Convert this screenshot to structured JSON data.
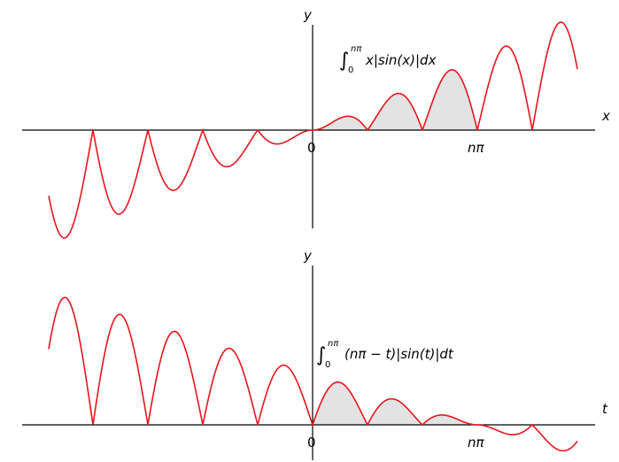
{
  "chart_data": [
    {
      "type": "line",
      "function": "y = x|sin(x)|",
      "x_labels": [
        "0",
        "nπ"
      ],
      "axis_labels": {
        "horizontal": "x",
        "vertical": "y"
      },
      "annotation": {
        "integral": "∫",
        "lower": "0",
        "upper": "nπ",
        "integrand": "x|sin(x)|dx"
      },
      "xlim": [
        -15.5,
        15.8
      ],
      "ylim": [
        -5.2,
        5.2
      ],
      "n": 3,
      "shaded_interval": [
        0,
        9.42
      ],
      "grid": false,
      "legend": "none",
      "line_color": "#e8141c",
      "shade_color": "#e3e3e3"
    },
    {
      "type": "line",
      "function": "y = (nπ − t)|sin(t)|",
      "x_labels": [
        "0",
        "nπ"
      ],
      "axis_labels": {
        "horizontal": "t",
        "vertical": "y"
      },
      "annotation": {
        "integral": "∫",
        "lower": "0",
        "upper": "nπ",
        "integrand": "(nπ − t)|sin(t)|dt"
      },
      "xlim": [
        -15.5,
        15.8
      ],
      "ylim": [
        -1.7,
        8.1
      ],
      "n": 3,
      "shaded_interval": [
        0,
        9.42
      ],
      "grid": false,
      "legend": "none",
      "line_color": "#e8141c",
      "shade_color": "#e3e3e3"
    }
  ]
}
